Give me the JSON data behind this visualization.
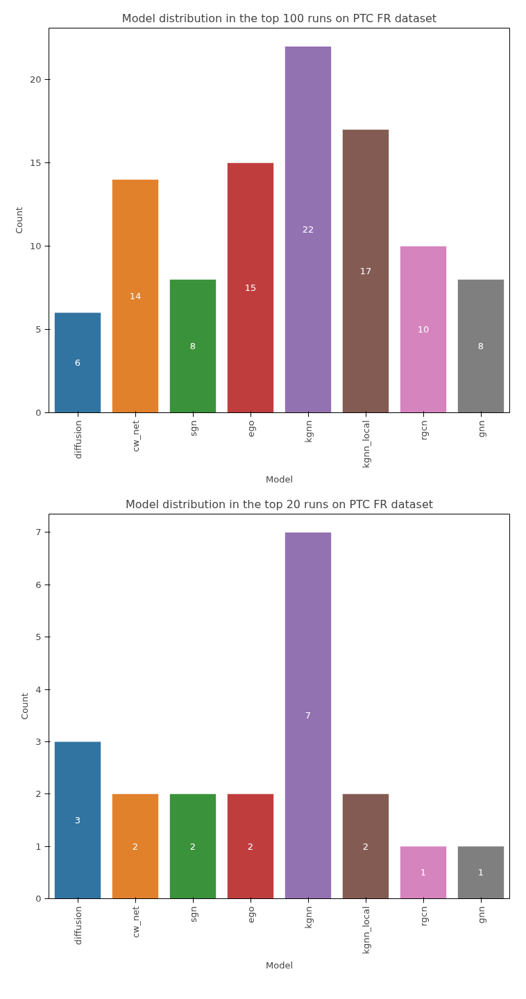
{
  "chart_data": [
    {
      "type": "bar",
      "title": "Model distribution in the top 100 runs on PTC FR dataset",
      "xlabel": "Model",
      "ylabel": "Count",
      "categories": [
        "diffusion",
        "cw_net",
        "sgn",
        "ego",
        "kgnn",
        "kgnn_local",
        "rgcn",
        "gnn"
      ],
      "values": [
        6,
        14,
        8,
        15,
        22,
        17,
        10,
        8
      ],
      "colors": [
        "#3274a1",
        "#e1812c",
        "#3a923a",
        "#c03d3e",
        "#9372b2",
        "#845b53",
        "#d684bd",
        "#7f7f7f"
      ],
      "ylim": [
        0,
        23.1
      ],
      "yticks": [
        0,
        5,
        10,
        15,
        20
      ],
      "data_labels": true,
      "grid": false
    },
    {
      "type": "bar",
      "title": "Model distribution in the top 20 runs on PTC FR dataset",
      "xlabel": "Model",
      "ylabel": "Count",
      "categories": [
        "diffusion",
        "cw_net",
        "sgn",
        "ego",
        "kgnn",
        "kgnn_local",
        "rgcn",
        "gnn"
      ],
      "values": [
        3,
        2,
        2,
        2,
        7,
        2,
        1,
        1
      ],
      "colors": [
        "#3274a1",
        "#e1812c",
        "#3a923a",
        "#c03d3e",
        "#9372b2",
        "#845b53",
        "#d684bd",
        "#7f7f7f"
      ],
      "ylim": [
        0,
        7.35
      ],
      "yticks": [
        0,
        1,
        2,
        3,
        4,
        5,
        6,
        7
      ],
      "data_labels": true,
      "grid": false
    }
  ]
}
